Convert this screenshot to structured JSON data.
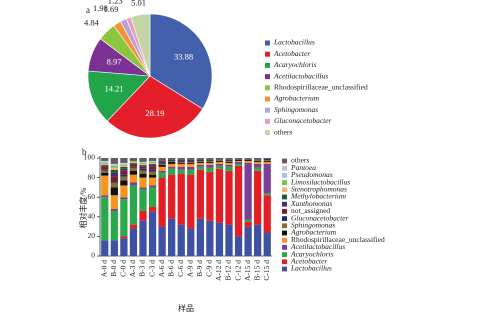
{
  "chart_data": [
    {
      "type": "pie",
      "panel": "a",
      "categories": [
        "Lactobacillus",
        "Acetobacter",
        "Acaryochloris",
        "Acetilactobacillus",
        "Rhodospirillaceae_unclassified",
        "Agrobacterium",
        "Sphingomonas",
        "Gluconacetobacter",
        "others"
      ],
      "italic": [
        true,
        true,
        true,
        true,
        false,
        true,
        true,
        true,
        false
      ],
      "values": [
        33.88,
        28.19,
        14.21,
        8.97,
        4.84,
        1.98,
        1.69,
        1.23,
        5.01
      ],
      "colors": [
        "#4360ac",
        "#e41f2b",
        "#22a54a",
        "#7b3294",
        "#8cc63f",
        "#f39237",
        "#b9a3d6",
        "#e7a0b8",
        "#c4d5a6"
      ]
    },
    {
      "type": "bar",
      "stacked": true,
      "panel": "b",
      "x_label": "样品",
      "y_label": "相对丰度/%",
      "categories": [
        "A-0 d",
        "B-0 d",
        "C-0 d",
        "A-3 d",
        "B-3 d",
        "C-3 d",
        "A-6 d",
        "B-6 d",
        "C-6 d",
        "A-9 d",
        "B-9 d",
        "C-9 d",
        "A-12 d",
        "B-12 d",
        "C-12 d",
        "A-15 d",
        "B-15 d",
        "C-15 d"
      ],
      "ylim": [
        0,
        100
      ],
      "yticks": [
        0,
        20,
        40,
        60,
        80,
        100
      ],
      "series": [
        {
          "name": "Lactobacillus",
          "italic": true,
          "color": "#3f51a3",
          "values": [
            16,
            16,
            18,
            28,
            36,
            45,
            30,
            38,
            32,
            28,
            38,
            36,
            34,
            32,
            20,
            30,
            32,
            24
          ]
        },
        {
          "name": "Acetobacter",
          "italic": true,
          "color": "#e31e24",
          "values": [
            0,
            0,
            2,
            4,
            10,
            5,
            50,
            45,
            52,
            55,
            50,
            50,
            55,
            55,
            72,
            5,
            55,
            38
          ]
        },
        {
          "name": "Acaryochloris",
          "italic": true,
          "color": "#2aa84a",
          "values": [
            44,
            30,
            38,
            40,
            22,
            20,
            5,
            6,
            4,
            5,
            3,
            4,
            3,
            4,
            2,
            2,
            3,
            2
          ]
        },
        {
          "name": "Acetilactobacillus",
          "italic": true,
          "color": "#7b3f98",
          "values": [
            2,
            2,
            2,
            3,
            2,
            2,
            2,
            2,
            3,
            3,
            2,
            3,
            2,
            2,
            2,
            58,
            4,
            30
          ]
        },
        {
          "name": "Rhodospirillaceae_unclassified",
          "italic": false,
          "color": "#f7941d",
          "values": [
            20,
            14,
            12,
            8,
            10,
            8,
            4,
            3,
            3,
            3,
            2,
            2,
            2,
            2,
            1,
            2,
            2,
            2
          ]
        },
        {
          "name": "Agrobacterium",
          "italic": true,
          "color": "#111111",
          "values": [
            3,
            8,
            5,
            4,
            4,
            3,
            2,
            2,
            1,
            1,
            1,
            1,
            1,
            1,
            1,
            1,
            1,
            1
          ]
        },
        {
          "name": "Sphingomonas",
          "italic": true,
          "color": "#8b6b2e",
          "values": [
            2,
            5,
            4,
            3,
            3,
            3,
            1,
            1,
            1,
            1,
            1,
            1,
            1,
            1,
            0,
            0,
            1,
            1
          ]
        },
        {
          "name": "Gluconacetobacter",
          "italic": true,
          "color": "#1f2f6e",
          "values": [
            1,
            1,
            2,
            1,
            2,
            2,
            1,
            1,
            1,
            1,
            1,
            1,
            0,
            1,
            0,
            0,
            0,
            1
          ]
        },
        {
          "name": "not_assigned",
          "italic": false,
          "color": "#7a1f2a",
          "values": [
            3,
            5,
            4,
            2,
            2,
            3,
            1,
            0,
            1,
            1,
            0,
            0,
            0,
            0,
            0,
            0,
            0,
            0
          ]
        },
        {
          "name": "Xanthomonas",
          "italic": true,
          "color": "#4b2a6e",
          "values": [
            1,
            4,
            2,
            1,
            1,
            2,
            1,
            0,
            0,
            0,
            0,
            0,
            0,
            0,
            0,
            0,
            0,
            0
          ]
        },
        {
          "name": "Methylobacterium",
          "italic": true,
          "color": "#1d5e2b",
          "values": [
            1,
            3,
            2,
            1,
            1,
            1,
            0,
            0,
            0,
            0,
            0,
            0,
            0,
            0,
            0,
            0,
            0,
            0
          ]
        },
        {
          "name": "Stenotrophomonas",
          "italic": true,
          "color": "#f6b27a",
          "values": [
            1,
            2,
            1,
            1,
            1,
            1,
            0,
            0,
            0,
            0,
            0,
            0,
            0,
            0,
            0,
            0,
            0,
            0
          ]
        },
        {
          "name": "Limosilactobacillus",
          "italic": true,
          "color": "#7cc242",
          "values": [
            1,
            2,
            1,
            1,
            1,
            1,
            0,
            0,
            0,
            0,
            0,
            0,
            0,
            0,
            0,
            0,
            0,
            0
          ]
        },
        {
          "name": "Pseudomonas",
          "italic": true,
          "color": "#a9c4e4",
          "values": [
            1,
            1,
            1,
            0,
            1,
            1,
            0,
            0,
            0,
            0,
            0,
            0,
            0,
            0,
            0,
            0,
            0,
            0
          ]
        },
        {
          "name": "Pantoea",
          "italic": true,
          "color": "#c9bde0",
          "values": [
            1,
            1,
            1,
            0,
            0,
            0,
            0,
            0,
            0,
            0,
            0,
            0,
            0,
            0,
            0,
            0,
            0,
            0
          ]
        },
        {
          "name": "others",
          "italic": false,
          "color": "#5e5e5e",
          "values": [
            3,
            6,
            5,
            3,
            4,
            3,
            3,
            2,
            2,
            2,
            2,
            2,
            2,
            2,
            2,
            2,
            2,
            1
          ]
        }
      ]
    }
  ]
}
